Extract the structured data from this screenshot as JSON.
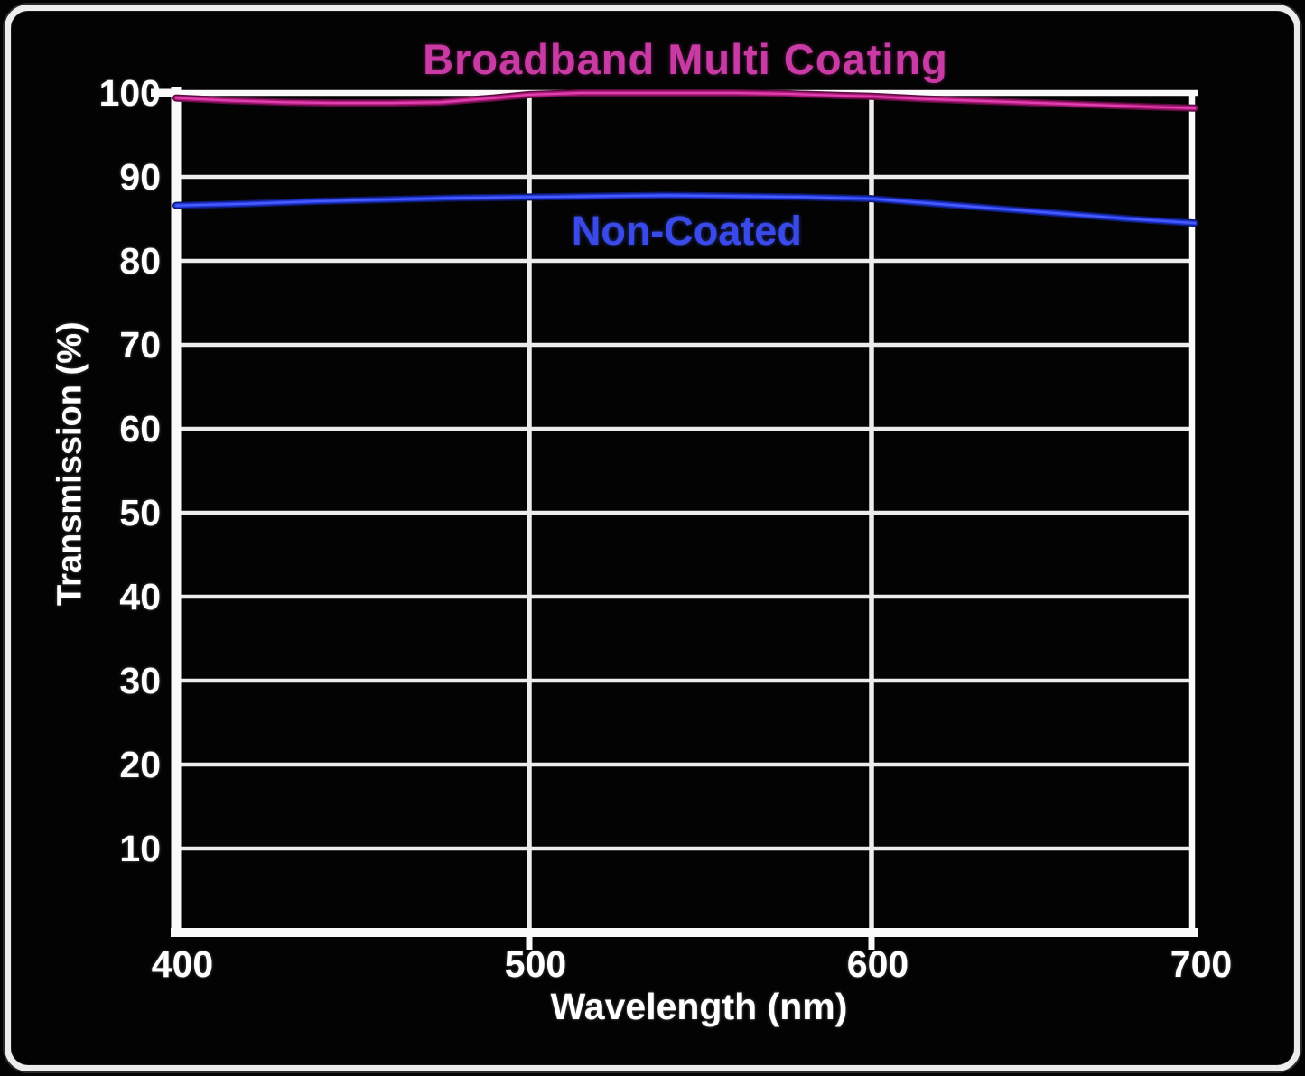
{
  "window": {
    "background": "#030303",
    "frame_color": "#ededed"
  },
  "chart_data": {
    "type": "line",
    "title": "Broadband Multi Coating",
    "title_color": "#c93aa4",
    "xlabel": "Wavelength (nm)",
    "ylabel": "Transmission (%)",
    "axis_text_color": "#ffffff",
    "grid_color": "#ececec",
    "grid": "both",
    "legend_position": "none",
    "xlim": [
      400,
      700
    ],
    "ylim": [
      0,
      100
    ],
    "x_ticks": [
      400,
      500,
      600,
      700
    ],
    "y_ticks": [
      100,
      90,
      80,
      70,
      60,
      50,
      40,
      30,
      20,
      10
    ],
    "x_gridlines": [
      500,
      600
    ],
    "series": [
      {
        "name": "Broadband Multi Coating",
        "color": "#ad1a78",
        "glow": "#e040b0",
        "shadow": "#5c0c40",
        "x": [
          400,
          415,
          430,
          445,
          460,
          475,
          490,
          500,
          515,
          530,
          545,
          560,
          575,
          590,
          600,
          615,
          630,
          645,
          660,
          675,
          690,
          700
        ],
        "values": [
          99.4,
          99.1,
          98.9,
          98.8,
          98.8,
          98.9,
          99.4,
          99.8,
          100,
          100,
          100,
          100,
          99.9,
          99.7,
          99.6,
          99.3,
          99.1,
          98.9,
          98.7,
          98.5,
          98.3,
          98.2
        ]
      },
      {
        "name": "Non-Coated",
        "color": "#2038d8",
        "glow": "#4a5cff",
        "shadow": "#0e1a6e",
        "x": [
          400,
          420,
          440,
          460,
          480,
          500,
          520,
          540,
          560,
          580,
          600,
          620,
          640,
          660,
          680,
          700
        ],
        "values": [
          86.6,
          86.8,
          87.1,
          87.3,
          87.5,
          87.6,
          87.7,
          87.8,
          87.7,
          87.6,
          87.4,
          86.8,
          86.2,
          85.6,
          85.0,
          84.5
        ]
      }
    ],
    "annotations": [
      {
        "text": "Non-Coated",
        "x": 546,
        "y": 83.6,
        "color": "#3a4ae8"
      }
    ]
  }
}
